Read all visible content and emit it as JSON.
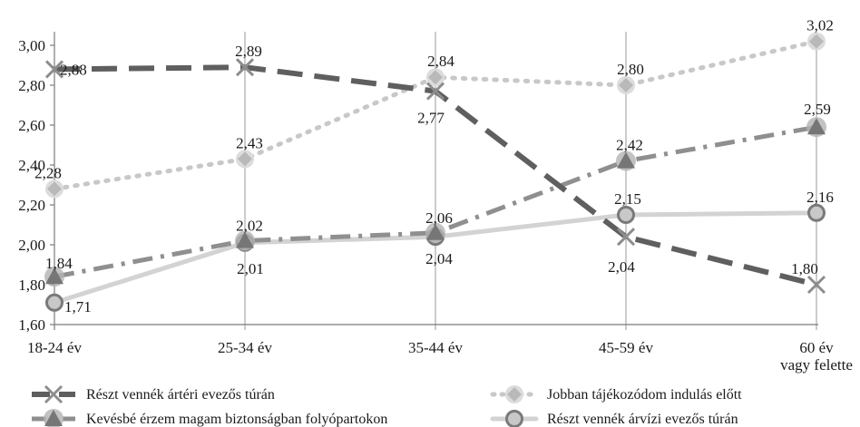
{
  "chart_data": {
    "type": "line",
    "categories": [
      "18-24 év",
      "25-34 év",
      "35-44 év",
      "45-59 év",
      "60 év vagy felette"
    ],
    "category_lines": [
      [
        "18-24 év"
      ],
      [
        "25-34 év"
      ],
      [
        "35-44 év"
      ],
      [
        "45-59 év"
      ],
      [
        "60 év",
        "vagy felette"
      ]
    ],
    "ylim": [
      1.6,
      3.0
    ],
    "yticks": [
      1.6,
      1.8,
      2.0,
      2.2,
      2.4,
      2.6,
      2.8,
      3.0
    ],
    "ytick_labels": [
      "1,60",
      "1,80",
      "2,00",
      "2,20",
      "2,40",
      "2,60",
      "2,80",
      "3,00"
    ],
    "grid": "vertical",
    "legend_position": "bottom",
    "series": [
      {
        "name": "Részt vennék ártéri evezős túrán",
        "values": [
          2.88,
          2.89,
          2.77,
          2.04,
          1.8
        ],
        "labels": [
          "2,88",
          "2,89",
          "2,77",
          "2,04",
          "1,80"
        ],
        "color": "#5f5f5f",
        "style": "long-dash",
        "marker": "x"
      },
      {
        "name": "Jobban tájékozódom indulás előtt",
        "values": [
          2.28,
          2.43,
          2.84,
          2.8,
          3.02
        ],
        "labels": [
          "2,28",
          "2,43",
          "2,84",
          "2,80",
          "3,02"
        ],
        "color": "#c8c8c8",
        "style": "dotted",
        "marker": "diamond"
      },
      {
        "name": "Kevésbé érzem magam biztonságban folyópartokon",
        "values": [
          1.84,
          2.02,
          2.06,
          2.42,
          2.59
        ],
        "labels": [
          "1,84",
          "2,02",
          "2,06",
          "2,42",
          "2,59"
        ],
        "color": "#8f8f8f",
        "style": "dash-dot",
        "marker": "triangle"
      },
      {
        "name": "Részt vennék árvízi evezős túrán",
        "values": [
          1.71,
          2.01,
          2.04,
          2.15,
          2.16
        ],
        "labels": [
          "1,71",
          "2,01",
          "2,04",
          "2,15",
          "2,16"
        ],
        "color": "#d3d3d3",
        "style": "solid",
        "marker": "circle"
      }
    ]
  }
}
